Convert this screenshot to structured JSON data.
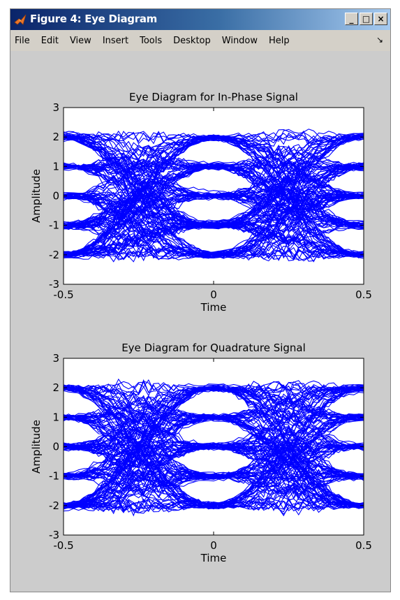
{
  "window": {
    "title": "Figure 4: Eye Diagram",
    "controls": {
      "minimize": "_",
      "maximize": "□",
      "close": "×"
    }
  },
  "menu": {
    "items": [
      "File",
      "Edit",
      "View",
      "Insert",
      "Tools",
      "Desktop",
      "Window",
      "Help"
    ],
    "overflow_icon": "arrow-icon"
  },
  "colors": {
    "trace": "#0000ff",
    "titlebar": "#0a246a",
    "figure_bg": "#cccccc"
  },
  "chart_data": [
    {
      "type": "line",
      "title": "Eye Diagram for In-Phase Signal",
      "xlabel": "Time",
      "ylabel": "Amplitude",
      "xlim": [
        -0.5,
        0.5
      ],
      "ylim": [
        -3,
        3
      ],
      "x_ticks": [
        "-0.5",
        "0",
        "0.5"
      ],
      "y_ticks": [
        "3",
        "2",
        "1",
        "0",
        "-1",
        "-2",
        "-3"
      ],
      "levels": [
        -2,
        -1,
        0,
        1,
        2
      ],
      "eye_openings_at_x": [
        -0.5,
        0,
        0.5
      ],
      "trace_color": "#0000ff"
    },
    {
      "type": "line",
      "title": "Eye Diagram for Quadrature Signal",
      "xlabel": "Time",
      "ylabel": "Amplitude",
      "xlim": [
        -0.5,
        0.5
      ],
      "ylim": [
        -3,
        3
      ],
      "x_ticks": [
        "-0.5",
        "0",
        "0.5"
      ],
      "y_ticks": [
        "3",
        "2",
        "1",
        "0",
        "-1",
        "-2",
        "-3"
      ],
      "levels": [
        -2,
        -1,
        0,
        1,
        2
      ],
      "eye_openings_at_x": [
        -0.5,
        0,
        0.5
      ],
      "trace_color": "#0000ff"
    }
  ]
}
